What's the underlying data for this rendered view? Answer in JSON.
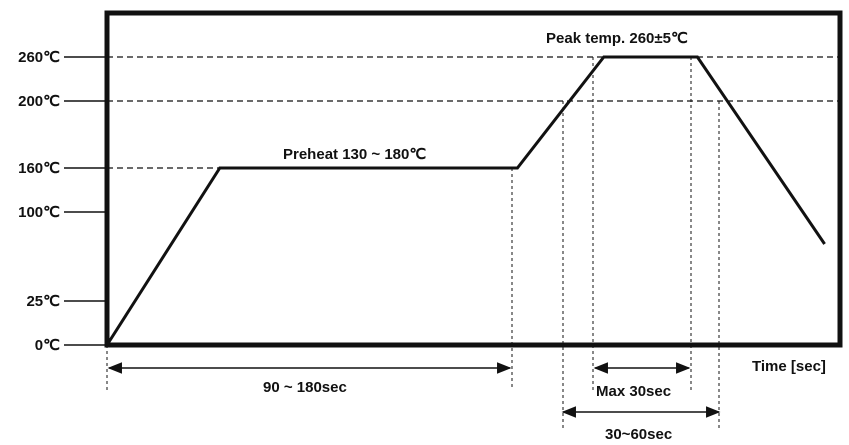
{
  "chart_data": {
    "type": "line",
    "title": "",
    "xlabel": "Time [sec]",
    "ylabel": "",
    "y_ticks": [
      {
        "value": 0,
        "label": "0℃"
      },
      {
        "value": 25,
        "label": "25℃"
      },
      {
        "value": 100,
        "label": "100℃"
      },
      {
        "value": 160,
        "label": "160℃"
      },
      {
        "value": 200,
        "label": "200℃"
      },
      {
        "value": 260,
        "label": "260℃"
      }
    ],
    "series": [
      {
        "points": [
          {
            "t": 0,
            "temp": 0
          },
          {
            "t": 47,
            "temp": 160
          },
          {
            "t": 171,
            "temp": 160
          },
          {
            "t": 207,
            "temp": 260
          },
          {
            "t": 246,
            "temp": 260
          },
          {
            "t": 299,
            "temp": 73
          }
        ]
      }
    ],
    "dashed_levels": [
      160,
      200,
      260
    ],
    "annotations": {
      "preheat": "Preheat 130 ~ 180℃",
      "peak": "Peak temp. 260±5℃",
      "preheat_span": "90 ~ 180sec",
      "max_span": "Max 30sec",
      "above200_span": "30~60sec"
    },
    "colors": {
      "line": "#111111",
      "frame": "#111111",
      "background": "#ffffff"
    }
  }
}
